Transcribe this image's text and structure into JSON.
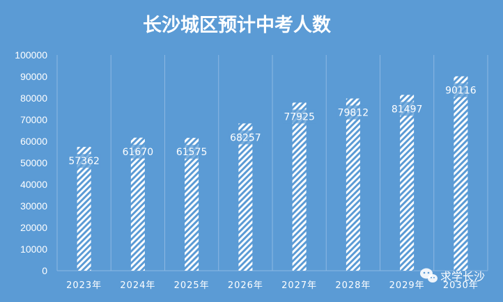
{
  "chart_data": {
    "type": "bar",
    "title": "长沙城区预计中考人数",
    "categories": [
      "2023年",
      "2024年",
      "2025年",
      "2026年",
      "2027年",
      "2028年",
      "2029年",
      "2030年"
    ],
    "values": [
      57362,
      61670,
      61575,
      68257,
      77925,
      79812,
      81497,
      90116
    ],
    "ylim": [
      0,
      100000
    ],
    "yticks": [
      0,
      10000,
      20000,
      30000,
      40000,
      50000,
      60000,
      70000,
      80000,
      90000,
      100000
    ],
    "grid": "vertical category separators",
    "bar_fill": "white diagonal hatch",
    "data_labels": true
  },
  "colors": {
    "background": "#5b9bd5",
    "text": "#ffffff",
    "bar_hatch": "#ffffff",
    "grid": "#8db8e3"
  },
  "watermark": {
    "text": "求学长沙",
    "icon": "wechat-icon"
  }
}
